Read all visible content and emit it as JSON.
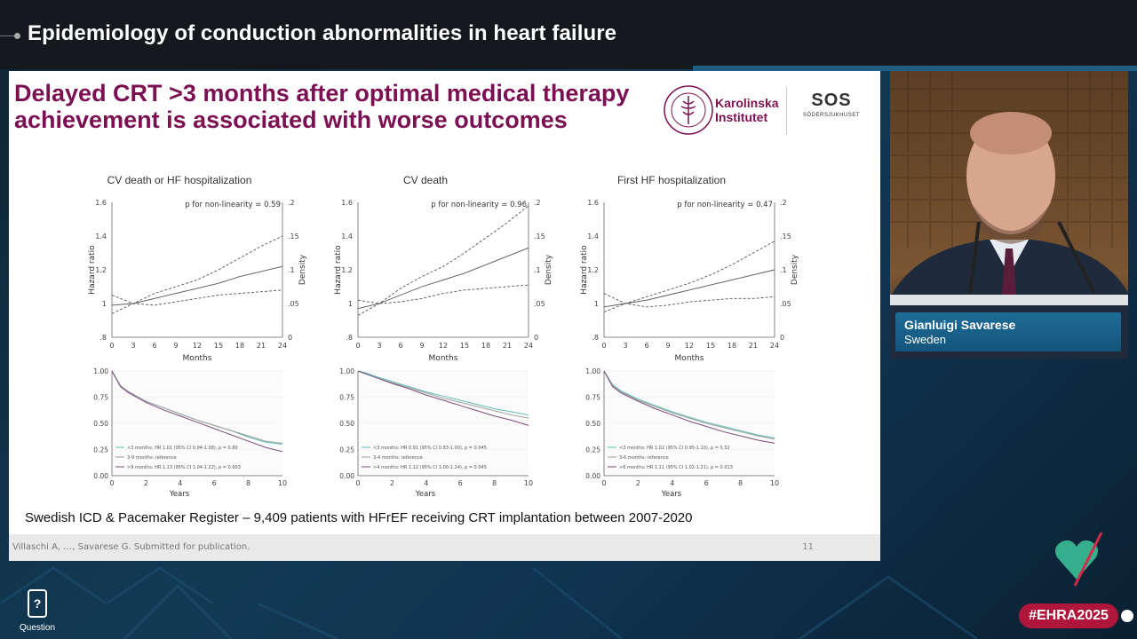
{
  "session": {
    "title": "Epidemiology of conduction abnormalities in heart failure"
  },
  "slide": {
    "headline_line1": "Delayed CRT >3 months after optimal medical therapy",
    "headline_line2": "achievement  is associated with worse outcomes",
    "logo_ki": {
      "line1": "Karolinska",
      "line2": "Institutet",
      "seal_text": "KAROLINSKA INSTITUTET ANNO 1810"
    },
    "logo_sos": {
      "main": "SOS",
      "sub": "SÖDERSJUKHUSET"
    },
    "caption": "Swedish ICD & Pacemaker Register – 9,409 patients with HFrEF receiving CRT implantation between 2007-2020",
    "footer_reference": "Villaschi A, …, Savarese G. Submitted for publication.",
    "page_number": "11",
    "colors": {
      "headline": "#7b1152",
      "series_teal": "#5fbcb4",
      "series_gray": "#9e9e9e",
      "series_purple": "#7a4d7a"
    }
  },
  "chart_data": [
    {
      "type": "line",
      "title": "CV death or HF hospitalization",
      "annotation": "p for non-linearity = 0.59",
      "xlabel": "Months",
      "ylabel": "Hazard ratio",
      "y2label": "Density",
      "xlim": [
        0,
        24
      ],
      "ylim": [
        0.8,
        1.6
      ],
      "y2lim": [
        0,
        2
      ],
      "xticks": [
        "0",
        "3",
        "6",
        "9",
        "12",
        "15",
        "18",
        "21",
        "24"
      ],
      "yticks": [
        ".8",
        "1",
        "1.2",
        "1.4",
        "1.6"
      ],
      "y2ticks": [
        "0",
        ".05",
        ".1",
        ".15",
        ".2"
      ],
      "x": [
        0,
        3,
        6,
        9,
        12,
        15,
        18,
        21,
        24
      ],
      "series": [
        {
          "values": [
            0.99,
            1.0,
            1.03,
            1.06,
            1.09,
            1.12,
            1.16,
            1.19,
            1.22
          ]
        },
        {
          "values": [
            0.94,
            1.0,
            1.06,
            1.1,
            1.14,
            1.2,
            1.27,
            1.34,
            1.4
          ]
        },
        {
          "values": [
            1.05,
            1.0,
            0.99,
            1.01,
            1.03,
            1.05,
            1.06,
            1.07,
            1.08
          ]
        }
      ]
    },
    {
      "type": "line",
      "title": "CV death",
      "annotation": "p for non-linearity = 0.96",
      "xlabel": "Months",
      "ylabel": "Hazard ratio",
      "y2label": "Density",
      "xlim": [
        0,
        24
      ],
      "ylim": [
        0.8,
        1.6
      ],
      "y2lim": [
        0,
        2
      ],
      "xticks": [
        "0",
        "3",
        "6",
        "9",
        "12",
        "15",
        "18",
        "21",
        "24"
      ],
      "yticks": [
        ".8",
        "1",
        "1.2",
        "1.4",
        "1.6"
      ],
      "y2ticks": [
        "0",
        ".05",
        ".1",
        ".15",
        ".2"
      ],
      "x": [
        0,
        3,
        6,
        9,
        12,
        15,
        18,
        21,
        24
      ],
      "series": [
        {
          "values": [
            0.97,
            1.0,
            1.05,
            1.1,
            1.14,
            1.18,
            1.23,
            1.28,
            1.33
          ]
        },
        {
          "values": [
            0.93,
            1.0,
            1.09,
            1.16,
            1.22,
            1.3,
            1.39,
            1.48,
            1.58
          ]
        },
        {
          "values": [
            1.02,
            1.0,
            1.01,
            1.03,
            1.06,
            1.08,
            1.09,
            1.1,
            1.11
          ]
        }
      ]
    },
    {
      "type": "line",
      "title": "First HF hospitalization",
      "annotation": "p for non-linearity = 0.47",
      "xlabel": "Months",
      "ylabel": "Hazard ratio",
      "y2label": "Density",
      "xlim": [
        0,
        24
      ],
      "ylim": [
        0.8,
        1.6
      ],
      "y2lim": [
        0,
        2
      ],
      "xticks": [
        "0",
        "3",
        "6",
        "9",
        "12",
        "15",
        "18",
        "21",
        "24"
      ],
      "yticks": [
        ".8",
        "1",
        "1.2",
        "1.4",
        "1.6"
      ],
      "y2ticks": [
        "0",
        ".05",
        ".1",
        ".15",
        ".2"
      ],
      "x": [
        0,
        3,
        6,
        9,
        12,
        15,
        18,
        21,
        24
      ],
      "series": [
        {
          "values": [
            0.98,
            1.0,
            1.02,
            1.05,
            1.08,
            1.11,
            1.14,
            1.17,
            1.2
          ]
        },
        {
          "values": [
            0.95,
            1.0,
            1.04,
            1.08,
            1.12,
            1.17,
            1.23,
            1.3,
            1.37
          ]
        },
        {
          "values": [
            1.06,
            1.0,
            0.98,
            0.99,
            1.01,
            1.02,
            1.03,
            1.03,
            1.04
          ]
        }
      ]
    },
    {
      "type": "line",
      "xlabel": "Years",
      "xlim": [
        0,
        10
      ],
      "ylim": [
        0,
        1
      ],
      "xticks": [
        "0",
        "2",
        "4",
        "6",
        "8",
        "10"
      ],
      "yticks": [
        "0.00",
        "0.25",
        "0.50",
        "0.75",
        "1.00"
      ],
      "x": [
        0,
        0.5,
        1,
        2,
        3,
        4,
        5,
        6,
        7,
        8,
        9,
        10
      ],
      "legend": [
        "<3 months: HR 1.01 (95% CI 0.94-1.08), p = 0.80",
        "3-9 months: reference",
        ">9 months: HR 1.13 (95% CI 1.04-1.22), p = 0.003"
      ],
      "series": [
        {
          "values": [
            1.0,
            0.86,
            0.8,
            0.71,
            0.65,
            0.59,
            0.53,
            0.48,
            0.43,
            0.37,
            0.32,
            0.3
          ]
        },
        {
          "values": [
            1.0,
            0.86,
            0.8,
            0.71,
            0.65,
            0.59,
            0.53,
            0.48,
            0.43,
            0.38,
            0.33,
            0.31
          ]
        },
        {
          "values": [
            1.0,
            0.85,
            0.79,
            0.7,
            0.63,
            0.57,
            0.51,
            0.45,
            0.39,
            0.33,
            0.27,
            0.23
          ]
        }
      ]
    },
    {
      "type": "line",
      "xlabel": "Years",
      "xlim": [
        0,
        10
      ],
      "ylim": [
        0,
        1
      ],
      "xticks": [
        "0",
        "2",
        "4",
        "6",
        "8",
        "10"
      ],
      "yticks": [
        "0.00",
        "0.25",
        "0.50",
        "0.75",
        "1.00"
      ],
      "x": [
        0,
        0.5,
        1,
        2,
        3,
        4,
        5,
        6,
        7,
        8,
        9,
        10
      ],
      "legend": [
        "<3 months: HR 0.91 (95% CI 0.83-1.00), p = 0.045",
        "3-4 months: reference",
        ">4 months: HR 1.12 (95% CI 1.00-1.24), p = 0.045"
      ],
      "series": [
        {
          "values": [
            1.0,
            0.98,
            0.95,
            0.9,
            0.85,
            0.8,
            0.76,
            0.72,
            0.68,
            0.64,
            0.61,
            0.58
          ]
        },
        {
          "values": [
            1.0,
            0.97,
            0.94,
            0.89,
            0.84,
            0.79,
            0.74,
            0.7,
            0.66,
            0.62,
            0.58,
            0.55
          ]
        },
        {
          "values": [
            1.0,
            0.97,
            0.94,
            0.88,
            0.83,
            0.77,
            0.72,
            0.67,
            0.62,
            0.57,
            0.53,
            0.48
          ]
        }
      ]
    },
    {
      "type": "line",
      "xlabel": "Years",
      "xlim": [
        0,
        10
      ],
      "ylim": [
        0,
        1
      ],
      "xticks": [
        "0",
        "2",
        "4",
        "6",
        "8",
        "10"
      ],
      "yticks": [
        "0.00",
        "0.25",
        "0.50",
        "0.75",
        "1.00"
      ],
      "x": [
        0,
        0.5,
        1,
        2,
        3,
        4,
        5,
        6,
        7,
        8,
        9,
        10
      ],
      "legend": [
        "<3 months: HR 1.02 (95% CI 0.95-1.10), p = 0.52",
        "3-6 months: reference",
        ">6 months: HR 1.11 (95% CI 1.02-1.21), p = 0.013"
      ],
      "series": [
        {
          "values": [
            1.0,
            0.87,
            0.81,
            0.73,
            0.67,
            0.61,
            0.56,
            0.51,
            0.47,
            0.43,
            0.39,
            0.36
          ]
        },
        {
          "values": [
            1.0,
            0.86,
            0.8,
            0.72,
            0.66,
            0.6,
            0.55,
            0.5,
            0.46,
            0.42,
            0.38,
            0.35
          ]
        },
        {
          "values": [
            1.0,
            0.85,
            0.79,
            0.71,
            0.64,
            0.58,
            0.52,
            0.47,
            0.42,
            0.38,
            0.34,
            0.31
          ]
        }
      ]
    }
  ],
  "speaker": {
    "name": "Gianluigi Savarese",
    "country": "Sweden"
  },
  "question": {
    "label": "Question"
  },
  "hashtag": {
    "label": "#EHRA2025"
  }
}
